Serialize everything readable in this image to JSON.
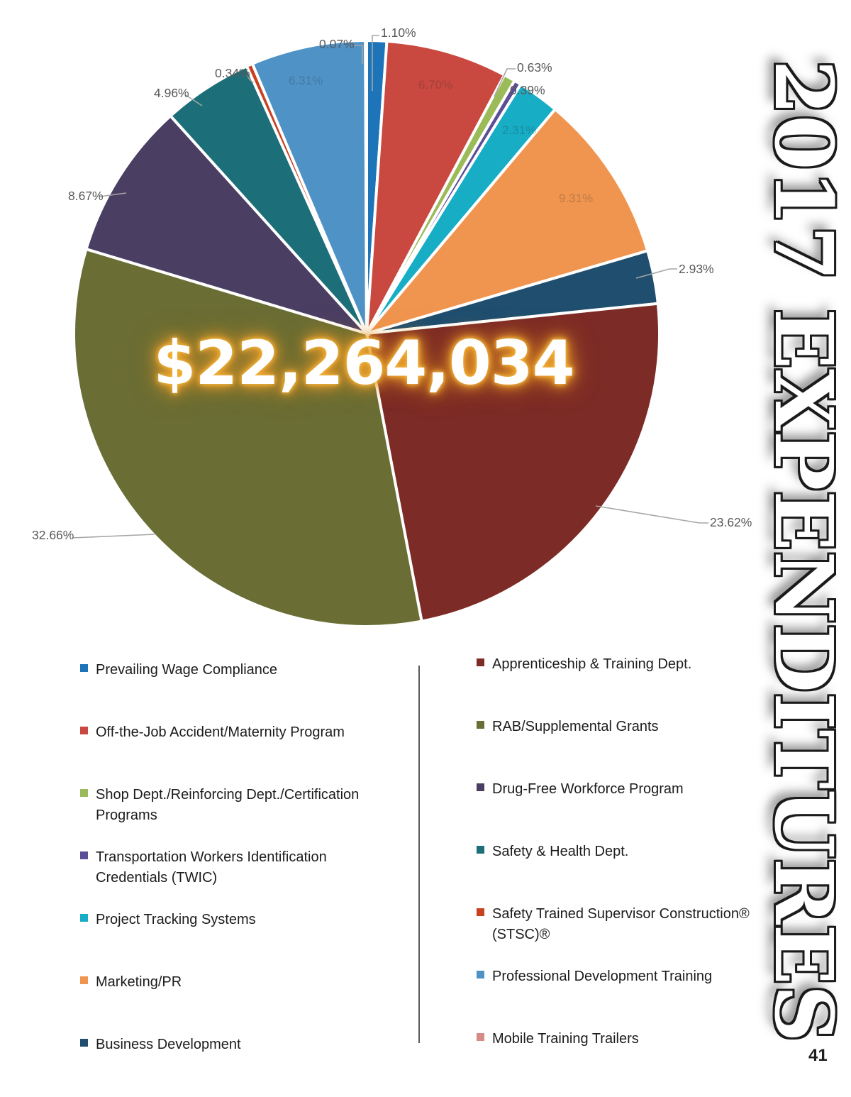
{
  "title": {
    "vertical_combined": "2017 EXPENDITURES"
  },
  "center_total": "$22,264,034",
  "page": {
    "number": "41"
  },
  "chart_data": {
    "type": "pie",
    "title": "2017 EXPENDITURES",
    "total_label": "$22,264,034",
    "start_angle_deg": -90,
    "direction": "clockwise",
    "legend_position": "bottom-two-columns",
    "slices": [
      {
        "label": "Prevailing Wage Compliance",
        "value": 1.1,
        "pct_label": "1.10%",
        "color": "#1E74B8",
        "label_placement": "outside"
      },
      {
        "label": "Off-the-Job Accident/Maternity Program",
        "value": 6.7,
        "pct_label": "6.70%",
        "color": "#C9483F",
        "label_placement": "inside-faint"
      },
      {
        "label": "Shop Dept./Reinforcing Dept./Certification Programs",
        "value": 0.63,
        "pct_label": "0.63%",
        "color": "#9BBB59",
        "label_placement": "outside"
      },
      {
        "label": "Transportation Workers Identification Credentials (TWIC)",
        "value": 0.39,
        "pct_label": "0.39%",
        "color": "#5A4E97",
        "label_placement": "outside"
      },
      {
        "label": "Project Tracking Systems",
        "value": 2.31,
        "pct_label": "2.31%",
        "color": "#16ADC5",
        "label_placement": "inside-faint"
      },
      {
        "label": "Marketing/PR",
        "value": 9.31,
        "pct_label": "9.31%",
        "color": "#F0954F",
        "label_placement": "inside-faint"
      },
      {
        "label": "Business Development",
        "value": 2.93,
        "pct_label": "2.93%",
        "color": "#1F4E6F",
        "label_placement": "outside"
      },
      {
        "label": "Apprenticeship & Training Dept.",
        "value": 23.62,
        "pct_label": "23.62%",
        "color": "#7D2B26",
        "label_placement": "outside"
      },
      {
        "label": "RAB/Supplemental Grants",
        "value": 32.66,
        "pct_label": "32.66%",
        "color": "#6A6D34",
        "label_placement": "outside"
      },
      {
        "label": "Drug-Free Workforce Program",
        "value": 8.67,
        "pct_label": "8.67%",
        "color": "#4A3F63",
        "label_placement": "outside"
      },
      {
        "label": "Safety & Health Dept.",
        "value": 4.96,
        "pct_label": "4.96%",
        "color": "#1C6E78",
        "label_placement": "outside"
      },
      {
        "label": "Safety Trained Supervisor Construction® (STSC)®",
        "value": 0.34,
        "pct_label": "0.34%",
        "color": "#C8411F",
        "label_placement": "outside"
      },
      {
        "label": "Professional Development Training",
        "value": 6.31,
        "pct_label": "6.31%",
        "color": "#4E92C6",
        "label_placement": "inside-faint"
      },
      {
        "label": "Mobile Training Trailers",
        "value": 0.07,
        "pct_label": "0.07%",
        "color": "#D68B87",
        "label_placement": "outside"
      }
    ]
  }
}
